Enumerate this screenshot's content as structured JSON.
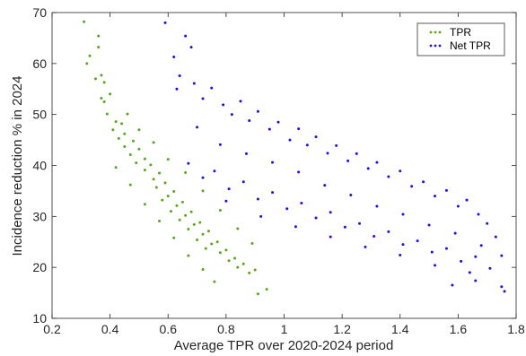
{
  "chart_data": {
    "type": "scatter",
    "title": "",
    "xlabel": "Average TPR over 2020-2024 period",
    "ylabel": "Incidence reduction % in 2024",
    "xlim": [
      0.2,
      1.8
    ],
    "ylim": [
      10,
      70
    ],
    "xticks": [
      0.2,
      0.4,
      0.6,
      0.8,
      1,
      1.2,
      1.4,
      1.6,
      1.8
    ],
    "xtick_labels": [
      "0.2",
      "0.4",
      "0.6",
      "0.8",
      "1",
      "1.2",
      "1.4",
      "1.6",
      "1.8"
    ],
    "yticks": [
      10,
      20,
      30,
      40,
      50,
      60,
      70
    ],
    "ytick_labels": [
      "10",
      "20",
      "30",
      "40",
      "50",
      "60",
      "70"
    ],
    "grid": false,
    "legend_position": "top-right",
    "series": [
      {
        "name": "TPR",
        "color": "#5aa51f",
        "points": [
          [
            0.31,
            68.2
          ],
          [
            0.33,
            61.5
          ],
          [
            0.32,
            60.0
          ],
          [
            0.36,
            65.4
          ],
          [
            0.36,
            63.2
          ],
          [
            0.37,
            57.7
          ],
          [
            0.35,
            57.0
          ],
          [
            0.38,
            56.3
          ],
          [
            0.37,
            53.2
          ],
          [
            0.38,
            52.5
          ],
          [
            0.4,
            54.0
          ],
          [
            0.39,
            50.1
          ],
          [
            0.42,
            48.6
          ],
          [
            0.41,
            47.0
          ],
          [
            0.44,
            48.2
          ],
          [
            0.43,
            45.3
          ],
          [
            0.45,
            46.2
          ],
          [
            0.45,
            43.7
          ],
          [
            0.48,
            44.8
          ],
          [
            0.47,
            42.1
          ],
          [
            0.5,
            43.2
          ],
          [
            0.49,
            40.5
          ],
          [
            0.52,
            41.3
          ],
          [
            0.52,
            39.1
          ],
          [
            0.54,
            40.1
          ],
          [
            0.55,
            37.3
          ],
          [
            0.57,
            38.5
          ],
          [
            0.56,
            35.7
          ],
          [
            0.59,
            36.6
          ],
          [
            0.6,
            34.0
          ],
          [
            0.58,
            33.2
          ],
          [
            0.62,
            34.9
          ],
          [
            0.63,
            32.1
          ],
          [
            0.61,
            31.0
          ],
          [
            0.65,
            32.8
          ],
          [
            0.66,
            30.2
          ],
          [
            0.64,
            29.3
          ],
          [
            0.68,
            30.9
          ],
          [
            0.69,
            28.4
          ],
          [
            0.67,
            27.5
          ],
          [
            0.71,
            28.8
          ],
          [
            0.72,
            26.5
          ],
          [
            0.7,
            25.4
          ],
          [
            0.74,
            27.1
          ],
          [
            0.75,
            24.6
          ],
          [
            0.73,
            23.7
          ],
          [
            0.77,
            25.0
          ],
          [
            0.78,
            22.9
          ],
          [
            0.8,
            23.4
          ],
          [
            0.81,
            21.3
          ],
          [
            0.83,
            21.8
          ],
          [
            0.84,
            20.0
          ],
          [
            0.86,
            20.7
          ],
          [
            0.88,
            18.9
          ],
          [
            0.9,
            19.5
          ],
          [
            0.91,
            14.8
          ],
          [
            0.94,
            15.7
          ],
          [
            0.46,
            50.1
          ],
          [
            0.5,
            47.0
          ],
          [
            0.55,
            44.5
          ],
          [
            0.6,
            41.2
          ],
          [
            0.66,
            38.6
          ],
          [
            0.72,
            35.0
          ],
          [
            0.78,
            31.2
          ],
          [
            0.84,
            27.6
          ],
          [
            0.89,
            24.7
          ],
          [
            0.42,
            39.6
          ],
          [
            0.47,
            36.2
          ],
          [
            0.52,
            32.4
          ],
          [
            0.57,
            29.1
          ],
          [
            0.62,
            25.8
          ],
          [
            0.67,
            22.3
          ],
          [
            0.72,
            19.6
          ],
          [
            0.76,
            17.2
          ]
        ]
      },
      {
        "name": "Net TPR",
        "color": "#1f10e0",
        "points": [
          [
            0.59,
            68.0
          ],
          [
            0.66,
            65.4
          ],
          [
            0.68,
            63.2
          ],
          [
            0.62,
            61.3
          ],
          [
            0.64,
            57.6
          ],
          [
            0.63,
            55.0
          ],
          [
            0.69,
            56.1
          ],
          [
            0.72,
            53.1
          ],
          [
            0.75,
            55.2
          ],
          [
            0.79,
            51.9
          ],
          [
            0.82,
            50.0
          ],
          [
            0.85,
            52.6
          ],
          [
            0.88,
            48.8
          ],
          [
            0.91,
            50.6
          ],
          [
            0.95,
            47.1
          ],
          [
            0.98,
            48.5
          ],
          [
            1.02,
            45.0
          ],
          [
            1.05,
            47.2
          ],
          [
            1.08,
            44.0
          ],
          [
            1.11,
            45.6
          ],
          [
            1.15,
            42.4
          ],
          [
            1.18,
            43.9
          ],
          [
            1.22,
            40.9
          ],
          [
            1.25,
            42.3
          ],
          [
            1.29,
            39.4
          ],
          [
            1.32,
            40.6
          ],
          [
            1.36,
            37.8
          ],
          [
            1.4,
            38.9
          ],
          [
            1.44,
            35.9
          ],
          [
            1.48,
            36.8
          ],
          [
            1.52,
            34.0
          ],
          [
            1.56,
            35.1
          ],
          [
            1.6,
            32.0
          ],
          [
            1.63,
            33.2
          ],
          [
            1.67,
            30.4
          ],
          [
            1.7,
            28.6
          ],
          [
            1.73,
            26.0
          ],
          [
            1.75,
            22.3
          ],
          [
            1.76,
            15.3
          ],
          [
            1.75,
            16.2
          ],
          [
            0.67,
            40.4
          ],
          [
            0.72,
            37.6
          ],
          [
            0.76,
            38.9
          ],
          [
            0.81,
            35.4
          ],
          [
            0.86,
            36.8
          ],
          [
            0.91,
            33.4
          ],
          [
            0.96,
            34.7
          ],
          [
            1.01,
            31.5
          ],
          [
            1.06,
            32.6
          ],
          [
            1.11,
            29.7
          ],
          [
            1.16,
            30.8
          ],
          [
            1.21,
            27.9
          ],
          [
            1.26,
            28.6
          ],
          [
            1.31,
            26.1
          ],
          [
            1.36,
            27.0
          ],
          [
            1.41,
            24.5
          ],
          [
            1.46,
            25.2
          ],
          [
            1.51,
            23.0
          ],
          [
            1.56,
            23.7
          ],
          [
            1.61,
            21.2
          ],
          [
            1.66,
            22.1
          ],
          [
            1.71,
            19.8
          ],
          [
            1.66,
            17.4
          ],
          [
            1.58,
            16.5
          ],
          [
            0.7,
            47.5
          ],
          [
            0.78,
            44.1
          ],
          [
            0.87,
            42.3
          ],
          [
            0.96,
            40.6
          ],
          [
            1.05,
            38.7
          ],
          [
            1.14,
            36.1
          ],
          [
            1.23,
            34.2
          ],
          [
            1.32,
            32.0
          ],
          [
            1.41,
            30.4
          ],
          [
            1.5,
            28.3
          ],
          [
            1.59,
            26.7
          ],
          [
            1.68,
            24.3
          ],
          [
            0.8,
            33.0
          ],
          [
            0.92,
            30.0
          ],
          [
            1.04,
            28.0
          ],
          [
            1.16,
            26.0
          ],
          [
            1.28,
            24.0
          ],
          [
            1.4,
            22.4
          ],
          [
            1.52,
            20.4
          ],
          [
            1.64,
            19.0
          ]
        ]
      }
    ]
  }
}
